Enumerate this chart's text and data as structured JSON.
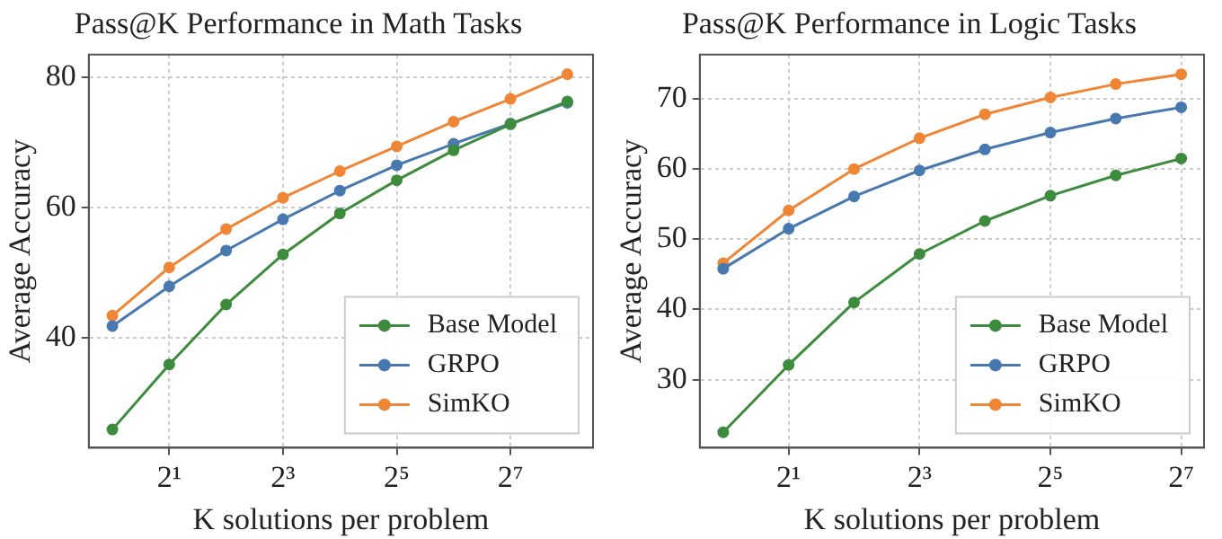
{
  "chart_data": [
    {
      "type": "line",
      "title": "Pass@K Performance in Math Tasks",
      "xlabel": "K solutions per problem",
      "ylabel": "Average Accuracy",
      "log": "x",
      "x": [
        1,
        2,
        4,
        8,
        16,
        32,
        64,
        128,
        256
      ],
      "xlim": [
        0.75,
        350
      ],
      "xticks": [
        {
          "value": 2,
          "label": "2¹"
        },
        {
          "value": 8,
          "label": "2³"
        },
        {
          "value": 32,
          "label": "2⁵"
        },
        {
          "value": 128,
          "label": "2⁷"
        }
      ],
      "ylim": [
        23.1,
        83.5
      ],
      "yticks": [
        40,
        60,
        80
      ],
      "grid": true,
      "legend": "bottom right",
      "marker": "circle",
      "line_style": "solid",
      "series": [
        {
          "name": "Base Model",
          "color": "#3d8b3d",
          "values": [
            25.9,
            35.9,
            45.1,
            52.8,
            59.1,
            64.2,
            68.8,
            72.8,
            76.3
          ]
        },
        {
          "name": "GRPO",
          "color": "#4878b0",
          "values": [
            41.8,
            47.9,
            53.4,
            58.2,
            62.6,
            66.5,
            69.8,
            72.9,
            76.1
          ]
        },
        {
          "name": "SimKO",
          "color": "#ef8636",
          "values": [
            43.4,
            50.8,
            56.7,
            61.5,
            65.6,
            69.4,
            73.2,
            76.7,
            80.5
          ]
        }
      ]
    },
    {
      "type": "line",
      "title": "Pass@K Performance in Logic Tasks",
      "xlabel": "K solutions per problem",
      "ylabel": "Average Accuracy",
      "log": "x",
      "x": [
        1,
        2,
        4,
        8,
        16,
        32,
        64,
        128
      ],
      "xlim": [
        0.78,
        163
      ],
      "xticks": [
        {
          "value": 2,
          "label": "2¹"
        },
        {
          "value": 8,
          "label": "2³"
        },
        {
          "value": 32,
          "label": "2⁵"
        },
        {
          "value": 128,
          "label": "2⁷"
        }
      ],
      "ylim": [
        20.3,
        76.3
      ],
      "yticks": [
        30,
        40,
        50,
        60,
        70
      ],
      "grid": true,
      "legend": "bottom right",
      "marker": "circle",
      "line_style": "solid",
      "series": [
        {
          "name": "Base Model",
          "color": "#3d8b3d",
          "values": [
            22.5,
            32.1,
            41.0,
            47.9,
            52.6,
            56.2,
            59.1,
            61.5
          ]
        },
        {
          "name": "GRPO",
          "color": "#4878b0",
          "values": [
            45.8,
            51.5,
            56.1,
            59.8,
            62.8,
            65.2,
            67.2,
            68.8
          ]
        },
        {
          "name": "SimKO",
          "color": "#ef8636",
          "values": [
            46.6,
            54.1,
            60.0,
            64.4,
            67.8,
            70.2,
            72.1,
            73.5
          ]
        }
      ]
    }
  ]
}
